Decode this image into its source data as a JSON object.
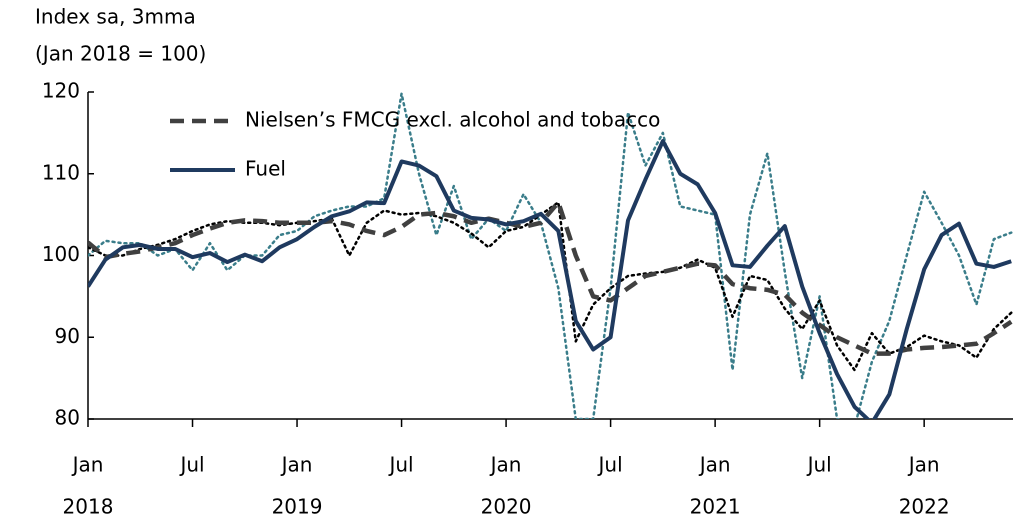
{
  "chart_data": {
    "type": "line",
    "ylabel": [
      "Index sa, 3mma",
      "(Jan 2018 = 100)"
    ],
    "categories": [
      "Jan",
      null,
      null,
      null,
      null,
      null,
      "Jul",
      null,
      null,
      null,
      null,
      null,
      "Jan",
      null,
      null,
      null,
      null,
      null,
      "Jul",
      null,
      null,
      null,
      null,
      null,
      "Jan",
      null,
      null,
      null,
      null,
      null,
      "Jul",
      null,
      null,
      null,
      null,
      null,
      "Jan",
      null,
      null,
      null,
      null,
      null,
      "Jul",
      null,
      null,
      null,
      null,
      null,
      "Jan",
      null,
      null,
      null,
      null,
      null
    ],
    "years": [
      "2018",
      "2019",
      "2020",
      "2021",
      "2022"
    ],
    "ylim": [
      80,
      120
    ],
    "yticks": [
      80,
      90,
      100,
      110,
      120
    ],
    "legend": "upper left",
    "series": [
      {
        "name": "Nielsen’s FMCG excl. alcohol and tobacco",
        "color": "#404040",
        "dash": "dashed",
        "values": [
          101.6,
          99.8,
          100.2,
          100.5,
          101,
          101.5,
          102.5,
          103.3,
          104,
          104.3,
          104.2,
          104,
          104,
          104,
          104.2,
          103.8,
          103,
          102.5,
          103.5,
          105,
          105.2,
          104.8,
          104,
          104.5,
          104,
          103.5,
          104,
          106.5,
          100,
          95,
          94.5,
          96,
          97.5,
          98,
          98.5,
          99,
          98.8,
          96.5,
          96,
          95.8,
          95.2,
          93,
          91.5,
          90,
          89,
          88,
          88,
          88.5,
          88.7,
          88.8,
          89,
          89.2,
          90.5,
          91.9
        ]
      },
      {
        "name": "Fuel",
        "color": "#1f3a5f",
        "dash": "solid",
        "values": [
          96.2,
          99.5,
          101,
          101.3,
          100.8,
          100.8,
          99.8,
          100.3,
          99.2,
          100.1,
          99.3,
          101,
          102,
          103.5,
          104.8,
          105.4,
          106.5,
          106.4,
          111.5,
          111,
          109.7,
          105.5,
          104.6,
          104.4,
          103.8,
          104.2,
          105.1,
          103,
          92,
          88.5,
          90,
          104.3,
          109.3,
          114,
          110,
          108.7,
          105.2,
          98.8,
          98.6,
          101.2,
          103.6,
          96.2,
          90.5,
          85.5,
          81.5,
          79.5,
          83,
          91,
          98.3,
          102.5,
          103.9,
          99,
          98.6,
          99.3
        ]
      },
      {
        "color": "#000000",
        "dash": "dotted",
        "values": [
          101,
          100,
          100,
          100.8,
          101.3,
          102,
          103,
          103.8,
          104.2,
          104,
          104,
          103.7,
          104,
          104.2,
          104.5,
          100,
          104,
          105.5,
          105,
          105.2,
          104.8,
          104,
          102.7,
          101,
          103,
          103.5,
          105,
          106.5,
          89.5,
          94,
          96,
          97.5,
          97.8,
          98,
          98.5,
          99.5,
          98.5,
          92.5,
          97.5,
          97,
          93.5,
          91,
          94.5,
          89,
          86,
          90.5,
          88,
          88.8,
          90.2,
          89.5,
          89,
          87.5,
          91,
          93
        ]
      },
      {
        "color": "#3a7d8a",
        "dash": "dotted",
        "values": [
          100,
          101.8,
          101.5,
          101.5,
          100,
          100.8,
          98.2,
          101.5,
          98.2,
          100,
          100,
          102.5,
          103,
          104.8,
          105.5,
          106,
          106,
          107,
          119.8,
          110,
          102.5,
          108.5,
          102,
          104.5,
          103,
          107.5,
          104,
          96,
          80,
          80,
          96,
          117.5,
          111,
          115,
          106,
          105.5,
          105,
          86,
          105,
          112.5,
          98,
          85,
          95,
          80,
          79,
          87,
          92,
          100,
          107.8,
          104,
          100,
          94,
          102,
          102.8
        ]
      }
    ]
  }
}
